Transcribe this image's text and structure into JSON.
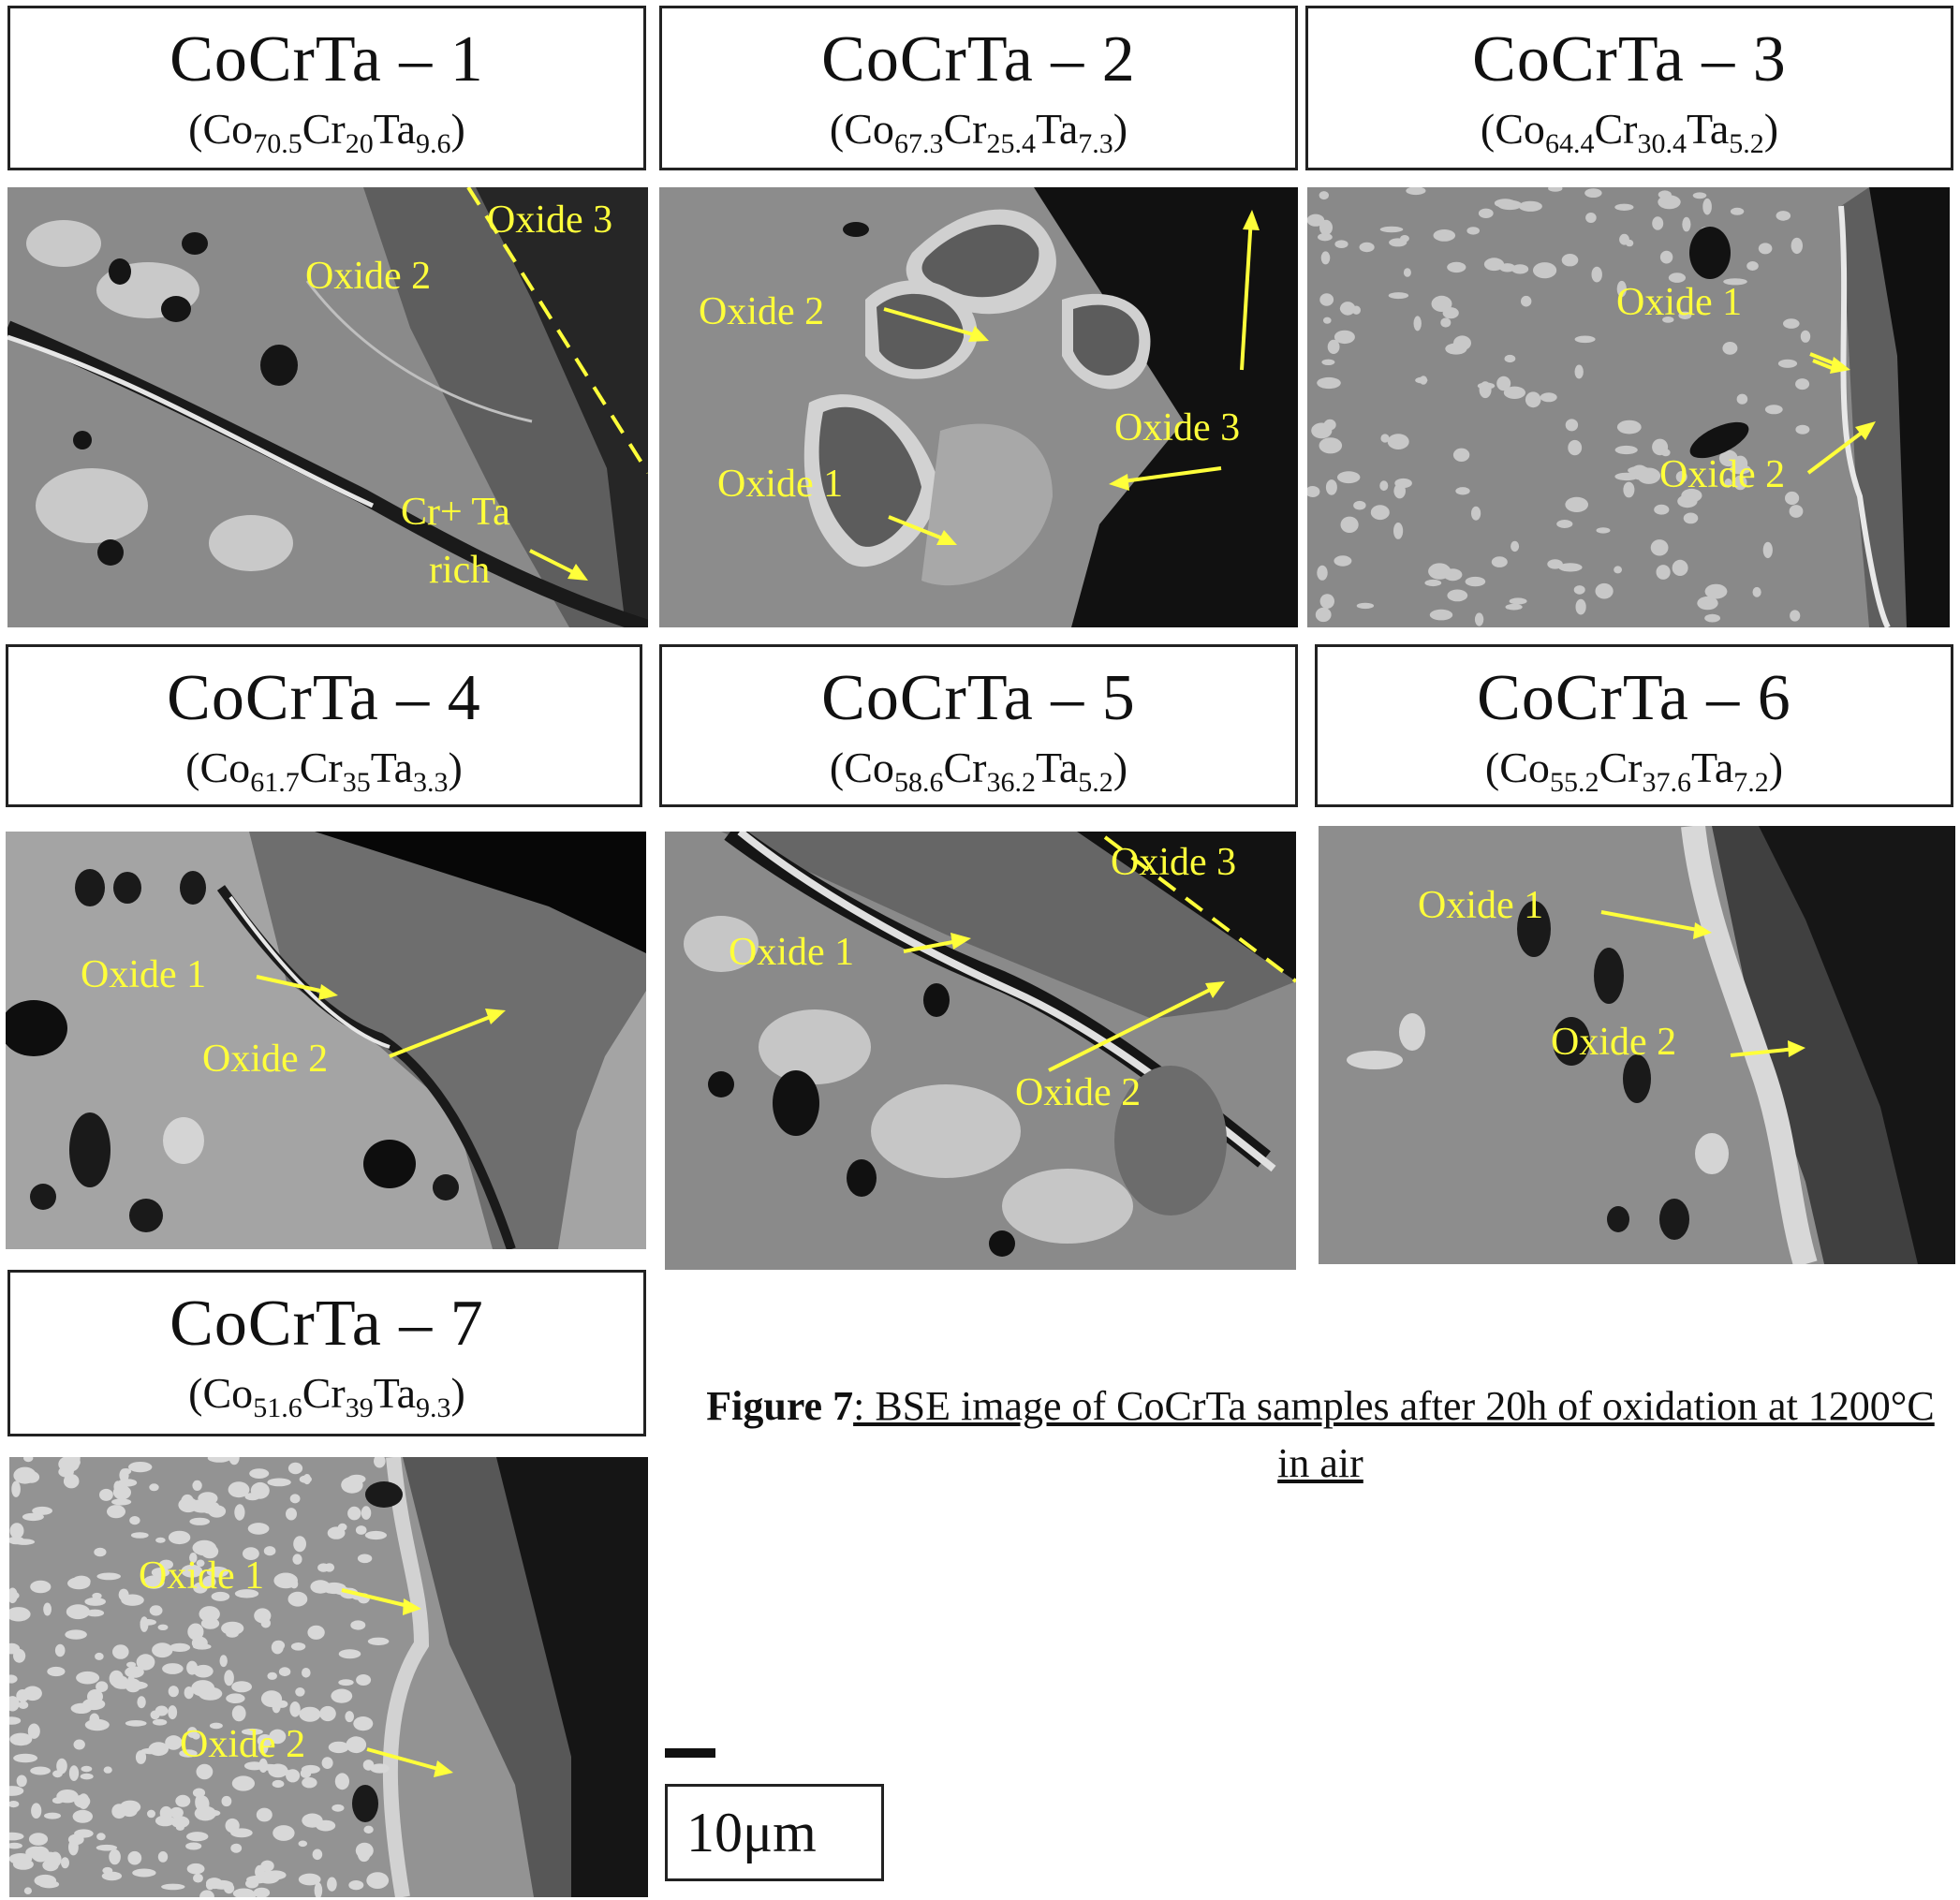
{
  "figure": {
    "caption_bold": "Figure 7",
    "caption_underlined": ": BSE image of CoCrTa samples after 20h of oxidation at 1200°C in air",
    "scale_label": "10μm"
  },
  "panels": [
    {
      "name": "CoCrTa – 1",
      "formula": [
        [
          "Co",
          "70.5"
        ],
        [
          "Cr",
          "20"
        ],
        [
          "Ta",
          "9.6"
        ]
      ],
      "labels": [
        "Oxide 3",
        "Oxide 2",
        "Cr+ Ta",
        "rich"
      ]
    },
    {
      "name": "CoCrTa – 2",
      "formula": [
        [
          "Co",
          "67.3"
        ],
        [
          "Cr",
          "25.4"
        ],
        [
          "Ta",
          "7.3"
        ]
      ],
      "labels": [
        "Oxide 2",
        "Oxide 3",
        "Oxide 1"
      ]
    },
    {
      "name": "CoCrTa – 3",
      "formula": [
        [
          "Co",
          "64.4"
        ],
        [
          "Cr",
          "30.4"
        ],
        [
          "Ta",
          "5.2"
        ]
      ],
      "labels": [
        "Oxide 1",
        "Oxide 2"
      ]
    },
    {
      "name": "CoCrTa – 4",
      "formula": [
        [
          "Co",
          "61.7"
        ],
        [
          "Cr",
          "35"
        ],
        [
          "Ta",
          "3.3"
        ]
      ],
      "labels": [
        "Oxide 1",
        "Oxide 2"
      ]
    },
    {
      "name": "CoCrTa – 5",
      "formula": [
        [
          "Co",
          "58.6"
        ],
        [
          "Cr",
          "36.2"
        ],
        [
          "Ta",
          "5.2"
        ]
      ],
      "labels": [
        "Oxide 3",
        "Oxide 1",
        "Oxide 2"
      ]
    },
    {
      "name": "CoCrTa – 6",
      "formula": [
        [
          "Co",
          "55.2"
        ],
        [
          "Cr",
          "37.6"
        ],
        [
          "Ta",
          "7.2"
        ]
      ],
      "labels": [
        "Oxide 1",
        "Oxide 2"
      ]
    },
    {
      "name": "CoCrTa – 7",
      "formula": [
        [
          "Co",
          "51.6"
        ],
        [
          "Cr",
          "39"
        ],
        [
          "Ta",
          "9.3"
        ]
      ],
      "labels": [
        "Oxide 1",
        "Oxide 2"
      ]
    }
  ]
}
